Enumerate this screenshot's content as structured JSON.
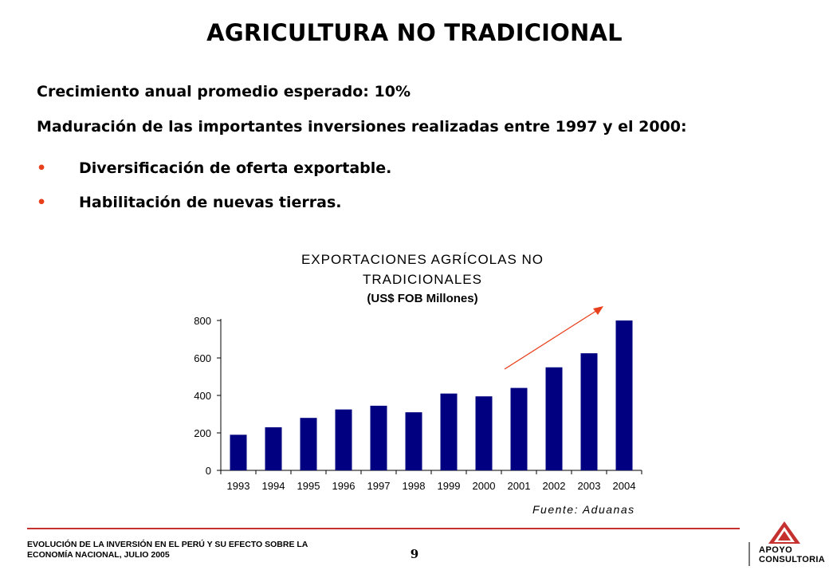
{
  "slide": {
    "title": "AGRICULTURA NO TRADICIONAL",
    "line1": "Crecimiento anual promedio esperado: 10%",
    "line2": "Maduración de las importantes inversiones realizadas entre 1997 y el 2000:",
    "bullets": [
      {
        "marker": "•",
        "text": "Diversificación de oferta exportable."
      },
      {
        "marker": "•",
        "text": "Habilitación de nuevas tierras."
      }
    ]
  },
  "chart_data": {
    "type": "bar",
    "title_line1": "EXPORTACIONES AGRÍCOLAS NO",
    "title_line2": "TRADICIONALES",
    "subtitle": "(US$ FOB Millones)",
    "categories": [
      "1993",
      "1994",
      "1995",
      "1996",
      "1997",
      "1998",
      "1999",
      "2000",
      "2001",
      "2002",
      "2003",
      "2004"
    ],
    "values": [
      190,
      230,
      280,
      325,
      345,
      310,
      410,
      395,
      440,
      550,
      625,
      800
    ],
    "ylim": [
      0,
      800
    ],
    "yticks": [
      "0",
      "200",
      "400",
      "600",
      "800"
    ],
    "grid": false,
    "bar_color": "#000080",
    "trend_arrow_color": "#e8401c",
    "source": "Fuente: Aduanas"
  },
  "footer": {
    "line1": "EVOLUCIÓN DE LA INVERSIÓN EN EL PERÚ Y SU EFECTO SOBRE LA",
    "line2": "ECONOMÍA NACIONAL, JULIO 2005",
    "page_number": "9",
    "logo_word1": "APOYO",
    "logo_word2": "CONSULTORIA",
    "rule_color": "#c5312e"
  }
}
